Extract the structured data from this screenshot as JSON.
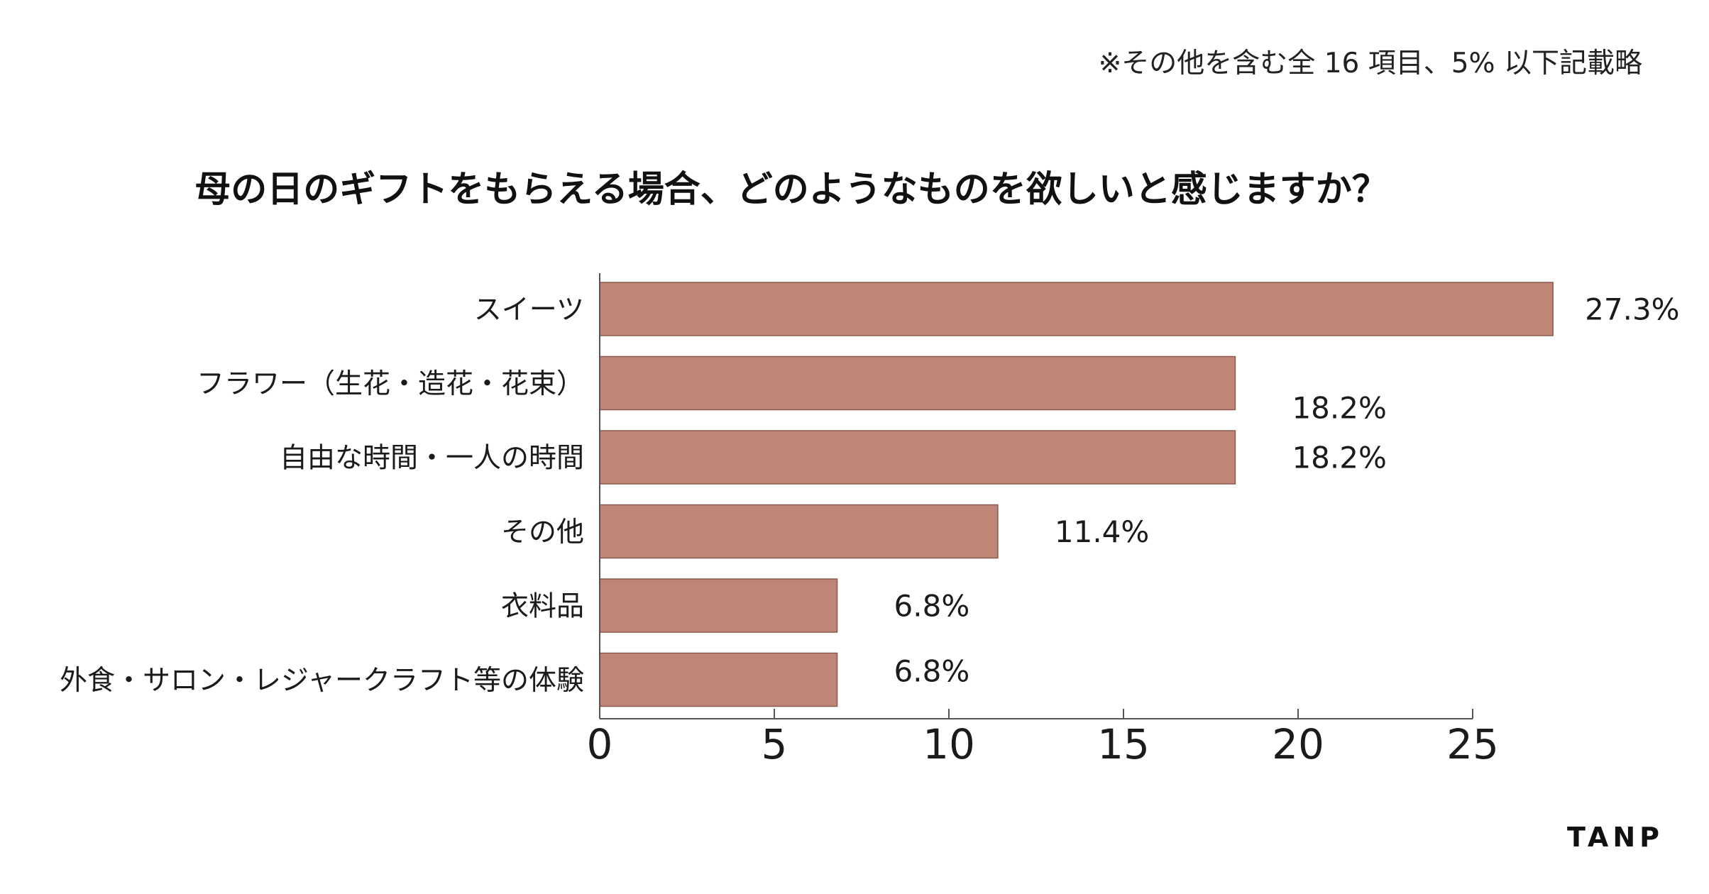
{
  "note": "※その他を含む全 16 項目、5% 以下記載略",
  "title": "母の日のギフトをもらえる場合、どのようなものを欲しいと感じますか？",
  "logo": "TANP",
  "colors": {
    "bar": "#bf8577",
    "bar_stroke": "#8a5a4f",
    "axis": "#555555",
    "text": "#1b1b1b"
  },
  "chart_data": {
    "type": "bar",
    "orientation": "horizontal",
    "title": "母の日のギフトをもらえる場合、どのようなものを欲しいと感じますか？",
    "categories": [
      "スイーツ",
      "フラワー（生花・造花・花束）",
      "自由な時間・一人の時間",
      "その他",
      "衣料品",
      "外食・サロン・レジャークラフト等の体験"
    ],
    "values": [
      27.3,
      18.2,
      18.2,
      11.4,
      6.8,
      6.8
    ],
    "value_labels": [
      "27.3%",
      "18.2%",
      "18.2%",
      "11.4%",
      "6.8%",
      "6.8%"
    ],
    "xlim": [
      0,
      25
    ],
    "xticks": [
      0,
      5,
      10,
      15,
      20,
      25
    ],
    "xlabel": "",
    "ylabel": "",
    "grid": false,
    "legend": "none"
  }
}
